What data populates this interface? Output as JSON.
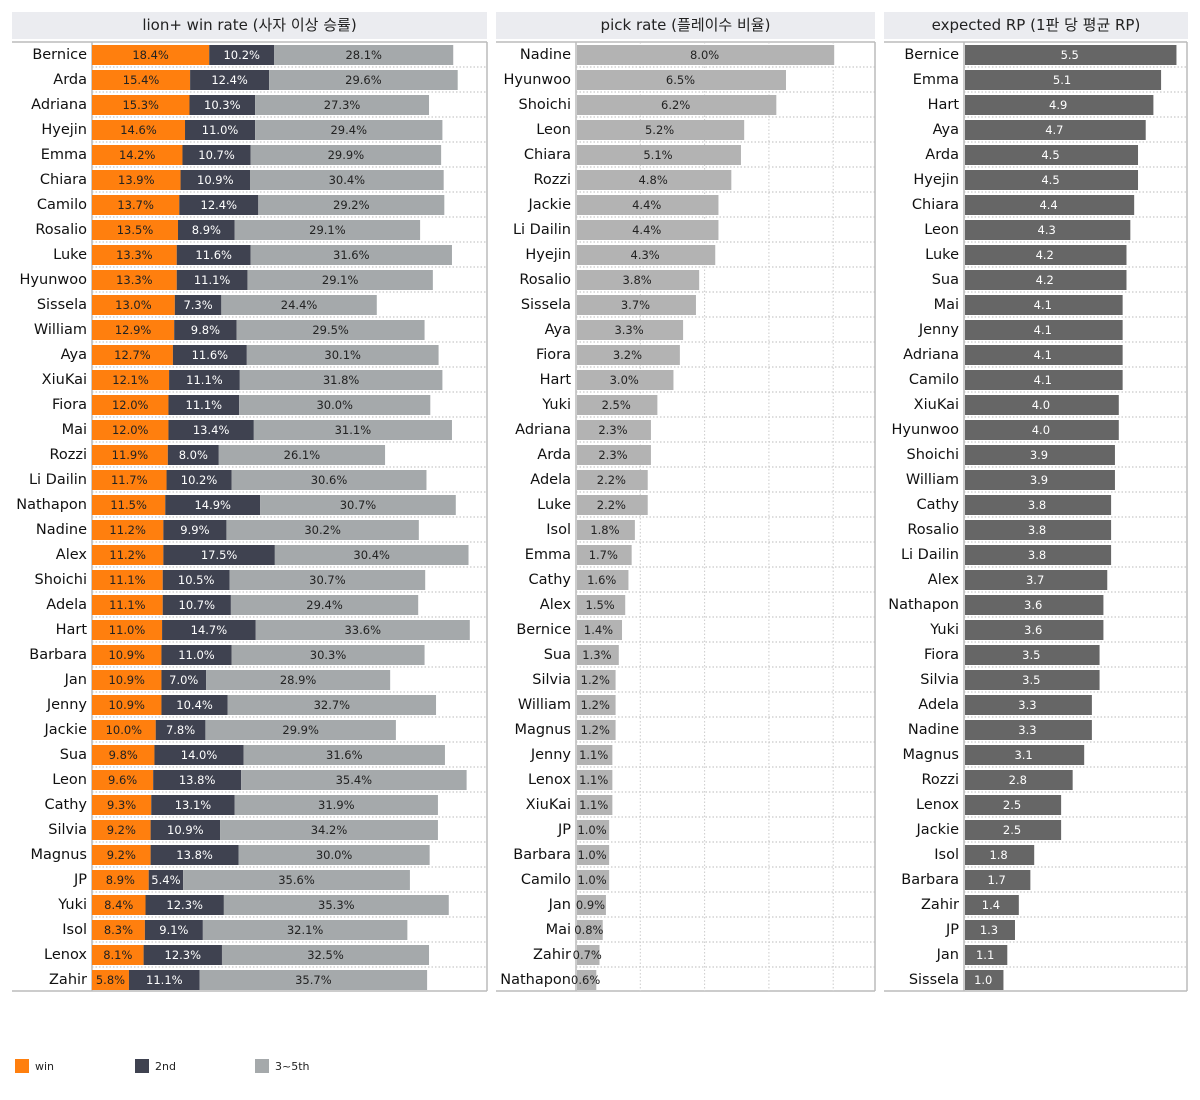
{
  "chart_data": [
    {
      "type": "bar",
      "orientation": "horizontal",
      "stacked": true,
      "title": "lion+ win rate (사자 이상 승률)",
      "value_format": "percent",
      "xlim": [
        0,
        62
      ],
      "grid": true,
      "legend_placement": "bottom-left",
      "colors": {
        "win": "#ff7f0e",
        "2nd": "#3f4250",
        "3~5th": "#a5a9ab"
      },
      "categories": [
        "Bernice",
        "Arda",
        "Adriana",
        "Hyejin",
        "Emma",
        "Chiara",
        "Camilo",
        "Rosalio",
        "Luke",
        "Hyunwoo",
        "Sissela",
        "William",
        "Aya",
        "XiuKai",
        "Fiora",
        "Mai",
        "Rozzi",
        "Li Dailin",
        "Nathapon",
        "Nadine",
        "Alex",
        "Shoichi",
        "Adela",
        "Hart",
        "Barbara",
        "Jan",
        "Jenny",
        "Jackie",
        "Sua",
        "Leon",
        "Cathy",
        "Silvia",
        "Magnus",
        "JP",
        "Yuki",
        "Isol",
        "Lenox",
        "Zahir"
      ],
      "series": [
        {
          "name": "win",
          "values": [
            18.4,
            15.4,
            15.3,
            14.6,
            14.2,
            13.9,
            13.7,
            13.5,
            13.3,
            13.3,
            13.0,
            12.9,
            12.7,
            12.1,
            12.0,
            12.0,
            11.9,
            11.7,
            11.5,
            11.2,
            11.2,
            11.1,
            11.1,
            11.0,
            10.9,
            10.9,
            10.9,
            10.0,
            9.8,
            9.6,
            9.3,
            9.2,
            9.2,
            8.9,
            8.4,
            8.3,
            8.1,
            5.8
          ]
        },
        {
          "name": "2nd",
          "values": [
            10.2,
            12.4,
            10.3,
            11.0,
            10.7,
            10.9,
            12.4,
            8.9,
            11.6,
            11.1,
            7.3,
            9.8,
            11.6,
            11.1,
            11.1,
            13.4,
            8.0,
            10.2,
            14.9,
            9.9,
            17.5,
            10.5,
            10.7,
            14.7,
            11.0,
            7.0,
            10.4,
            7.8,
            14.0,
            13.8,
            13.1,
            10.9,
            13.8,
            5.4,
            12.3,
            9.1,
            12.3,
            11.1
          ]
        },
        {
          "name": "3~5th",
          "values": [
            28.1,
            29.6,
            27.3,
            29.4,
            29.9,
            30.4,
            29.2,
            29.1,
            31.6,
            29.1,
            24.4,
            29.5,
            30.1,
            31.8,
            30.0,
            31.1,
            26.1,
            30.6,
            30.7,
            30.2,
            30.4,
            30.7,
            29.4,
            33.6,
            30.3,
            28.9,
            32.7,
            29.9,
            31.6,
            35.4,
            31.9,
            34.2,
            30.0,
            35.6,
            35.3,
            32.1,
            32.5,
            35.7
          ]
        }
      ]
    },
    {
      "type": "bar",
      "orientation": "horizontal",
      "title": "pick rate (플레이수 비율)",
      "value_format": "percent",
      "xlim": [
        0,
        9.3
      ],
      "grid": true,
      "color": "#b3b3b3",
      "categories": [
        "Nadine",
        "Hyunwoo",
        "Shoichi",
        "Leon",
        "Chiara",
        "Rozzi",
        "Jackie",
        "Li Dailin",
        "Hyejin",
        "Rosalio",
        "Sissela",
        "Aya",
        "Fiora",
        "Hart",
        "Yuki",
        "Adriana",
        "Arda",
        "Adela",
        "Luke",
        "Isol",
        "Emma",
        "Cathy",
        "Alex",
        "Bernice",
        "Sua",
        "Silvia",
        "William",
        "Magnus",
        "Jenny",
        "Lenox",
        "XiuKai",
        "JP",
        "Barbara",
        "Camilo",
        "Jan",
        "Mai",
        "Zahir",
        "Nathapon"
      ],
      "values": [
        8.0,
        6.5,
        6.2,
        5.2,
        5.1,
        4.8,
        4.4,
        4.4,
        4.3,
        3.8,
        3.7,
        3.3,
        3.2,
        3.0,
        2.5,
        2.3,
        2.3,
        2.2,
        2.2,
        1.8,
        1.7,
        1.6,
        1.5,
        1.4,
        1.3,
        1.2,
        1.2,
        1.2,
        1.1,
        1.1,
        1.1,
        1.0,
        1.0,
        1.0,
        0.9,
        0.8,
        0.7,
        0.6
      ]
    },
    {
      "type": "bar",
      "orientation": "horizontal",
      "title": "expected RP (1판 당 평균 RP)",
      "value_format": "number",
      "xlim": [
        0,
        5.8
      ],
      "grid": true,
      "color": "#666666",
      "categories": [
        "Bernice",
        "Emma",
        "Hart",
        "Aya",
        "Arda",
        "Hyejin",
        "Chiara",
        "Leon",
        "Luke",
        "Sua",
        "Mai",
        "Jenny",
        "Adriana",
        "Camilo",
        "XiuKai",
        "Hyunwoo",
        "Shoichi",
        "William",
        "Cathy",
        "Rosalio",
        "Li Dailin",
        "Alex",
        "Nathapon",
        "Yuki",
        "Fiora",
        "Silvia",
        "Adela",
        "Nadine",
        "Magnus",
        "Rozzi",
        "Lenox",
        "Jackie",
        "Isol",
        "Barbara",
        "Zahir",
        "JP",
        "Jan",
        "Sissela"
      ],
      "values": [
        5.5,
        5.1,
        4.9,
        4.7,
        4.5,
        4.5,
        4.4,
        4.3,
        4.2,
        4.2,
        4.1,
        4.1,
        4.1,
        4.1,
        4.0,
        4.0,
        3.9,
        3.9,
        3.8,
        3.8,
        3.8,
        3.7,
        3.6,
        3.6,
        3.5,
        3.5,
        3.3,
        3.3,
        3.1,
        2.8,
        2.5,
        2.5,
        1.8,
        1.7,
        1.4,
        1.3,
        1.1,
        1.0
      ]
    }
  ],
  "legend": [
    "win",
    "2nd",
    "3~5th"
  ]
}
